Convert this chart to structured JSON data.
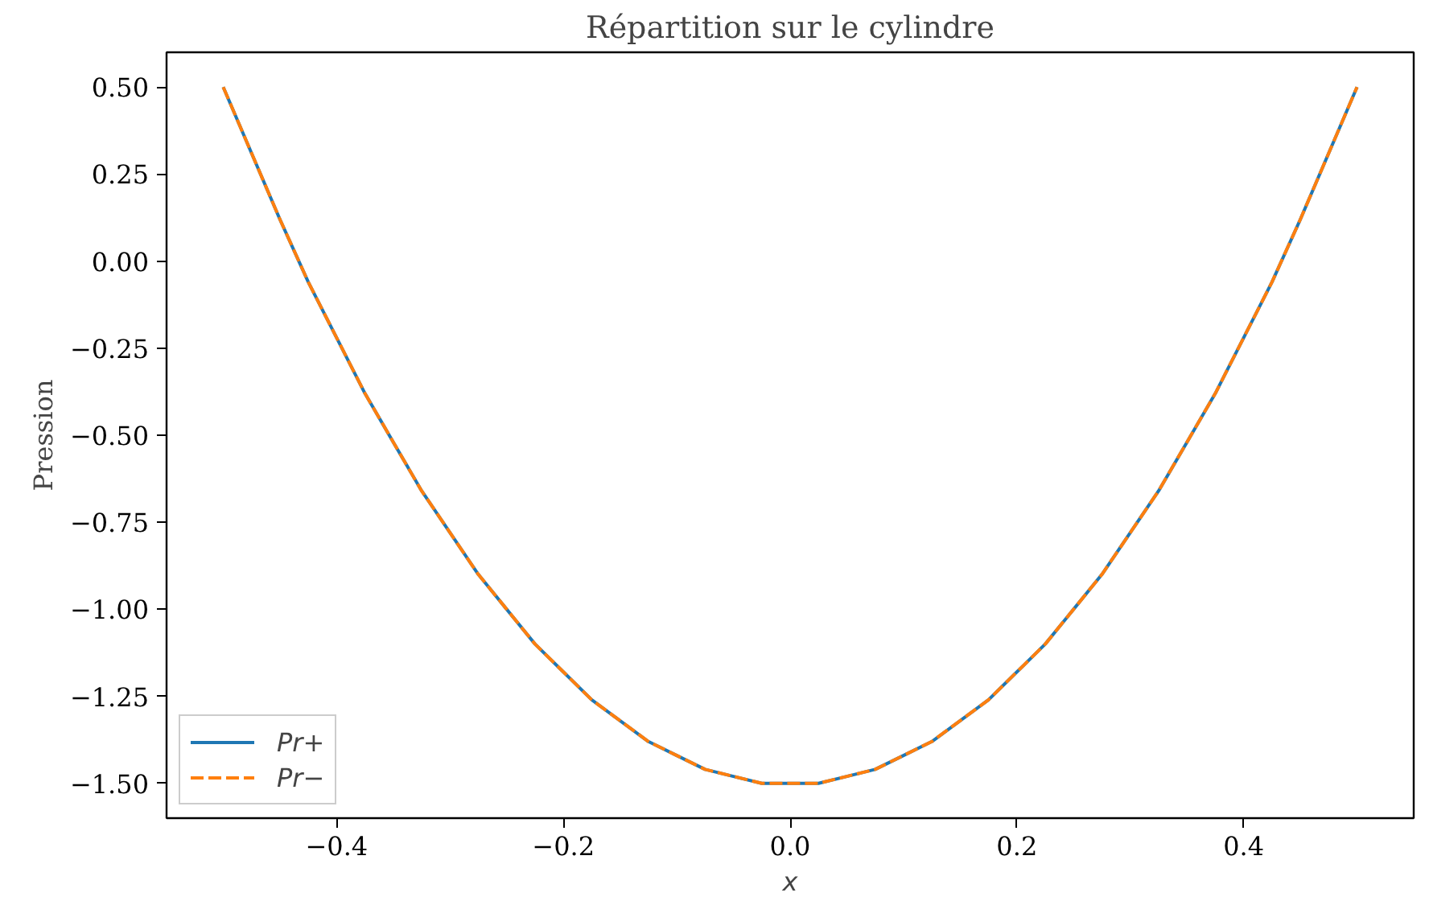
{
  "chart_data": {
    "type": "line",
    "title": "Répartition sur le cylindre",
    "xlabel": "x",
    "ylabel": "Pression",
    "x": [
      -0.5,
      -0.475,
      -0.45,
      -0.425,
      -0.4,
      -0.375,
      -0.35,
      -0.325,
      -0.3,
      -0.275,
      -0.25,
      -0.225,
      -0.2,
      -0.175,
      -0.15,
      -0.125,
      -0.1,
      -0.075,
      -0.05,
      -0.025,
      0,
      0.025,
      0.05,
      0.075,
      0.1,
      0.125,
      0.15,
      0.175,
      0.2,
      0.225,
      0.25,
      0.275,
      0.3,
      0.325,
      0.35,
      0.375,
      0.4,
      0.425,
      0.45,
      0.475,
      0.5
    ],
    "series": [
      {
        "name": "Pr+",
        "color": "#1f77b4",
        "line_style": "solid",
        "values": [
          0.5,
          0.31,
          0.12,
          -0.06,
          -0.22,
          -0.38,
          -0.52,
          -0.66,
          -0.78,
          -0.9,
          -1.0,
          -1.1,
          -1.18,
          -1.26,
          -1.32,
          -1.38,
          -1.42,
          -1.46,
          -1.48,
          -1.5,
          -1.5,
          -1.5,
          -1.48,
          -1.46,
          -1.42,
          -1.38,
          -1.32,
          -1.26,
          -1.18,
          -1.1,
          -1.0,
          -0.9,
          -0.78,
          -0.66,
          -0.52,
          -0.38,
          -0.22,
          -0.06,
          0.12,
          0.31,
          0.5
        ]
      },
      {
        "name": "Pr−",
        "color": "#ff7f0e",
        "line_style": "dashed",
        "values": [
          0.5,
          0.31,
          0.12,
          -0.06,
          -0.22,
          -0.38,
          -0.52,
          -0.66,
          -0.78,
          -0.9,
          -1.0,
          -1.1,
          -1.18,
          -1.26,
          -1.32,
          -1.38,
          -1.42,
          -1.46,
          -1.48,
          -1.5,
          -1.5,
          -1.5,
          -1.48,
          -1.46,
          -1.42,
          -1.38,
          -1.32,
          -1.26,
          -1.18,
          -1.1,
          -1.0,
          -0.9,
          -0.78,
          -0.66,
          -0.52,
          -0.38,
          -0.22,
          -0.06,
          0.12,
          0.31,
          0.5
        ]
      }
    ],
    "xlim": [
      -0.55,
      0.55
    ],
    "ylim": [
      -1.6,
      0.6
    ],
    "xticks": [
      {
        "value": -0.4,
        "label": "−0.4"
      },
      {
        "value": -0.2,
        "label": "−0.2"
      },
      {
        "value": 0,
        "label": "0.0"
      },
      {
        "value": 0.2,
        "label": "0.2"
      },
      {
        "value": 0.4,
        "label": "0.4"
      }
    ],
    "yticks": [
      {
        "value": -1.5,
        "label": "−1.50"
      },
      {
        "value": -1.25,
        "label": "−1.25"
      },
      {
        "value": -1.0,
        "label": "−1.00"
      },
      {
        "value": -0.75,
        "label": "−0.75"
      },
      {
        "value": -0.5,
        "label": "−0.50"
      },
      {
        "value": -0.25,
        "label": "−0.25"
      },
      {
        "value": 0,
        "label": "0.00"
      },
      {
        "value": 0.25,
        "label": "0.25"
      },
      {
        "value": 0.5,
        "label": "0.50"
      }
    ],
    "grid": false,
    "legend": "bottom left"
  }
}
